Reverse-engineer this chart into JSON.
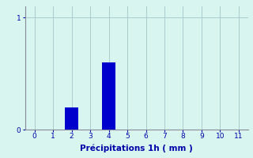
{
  "categories": [
    0,
    1,
    2,
    3,
    4,
    5,
    6,
    7,
    8,
    9,
    10,
    11
  ],
  "values": [
    0,
    0,
    0.2,
    0,
    0.6,
    0,
    0,
    0,
    0,
    0,
    0,
    0
  ],
  "bar_color": "#0000cc",
  "background_color": "#d8f5f0",
  "grid_color": "#aacccc",
  "text_color": "#0000aa",
  "xlabel": "Précipitations 1h ( mm )",
  "xlabel_fontsize": 7.5,
  "tick_fontsize": 6.5,
  "yticks": [
    0,
    1
  ],
  "ylim": [
    0,
    1.1
  ],
  "xlim": [
    -0.5,
    11.5
  ],
  "bar_width": 0.7
}
